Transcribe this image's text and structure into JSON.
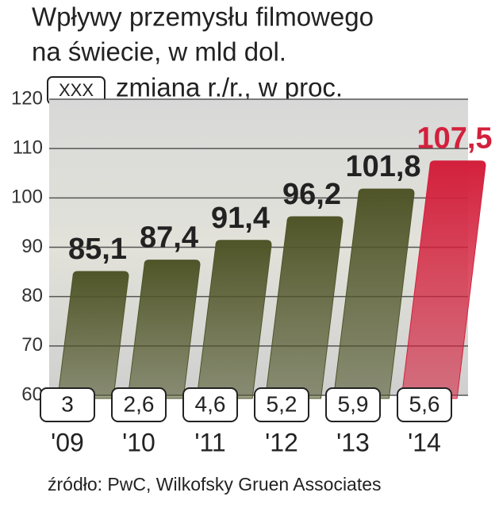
{
  "chart_data": {
    "type": "bar",
    "title": [
      "Wpływy przemysłu filmowego",
      "na świecie, w mld dol."
    ],
    "change_legend_box": "XXX",
    "change_legend": "zmiana r./r., w proc.",
    "categories": [
      "'09",
      "'10",
      "'11",
      "'12",
      "'13",
      "'14"
    ],
    "values": [
      85.1,
      87.4,
      91.4,
      96.2,
      101.8,
      107.5
    ],
    "value_labels": [
      "85,1",
      "87,4",
      "91,4",
      "96,2",
      "101,8",
      "107,5"
    ],
    "colors": [
      "#4f5528",
      "#4f5528",
      "#4f5528",
      "#4f5528",
      "#4f5528",
      "#d3203c"
    ],
    "changes": [
      3,
      2.6,
      4.6,
      5.2,
      5.9,
      5.6
    ],
    "change_labels": [
      "3",
      "2,6",
      "4,6",
      "5,2",
      "5,9",
      "5,6"
    ],
    "ylim": [
      60,
      120
    ],
    "yticks": [
      60,
      70,
      80,
      90,
      100,
      110,
      120
    ],
    "grid": true,
    "source": "źródło:  PwC, Wilkofsky Gruen Associates"
  }
}
